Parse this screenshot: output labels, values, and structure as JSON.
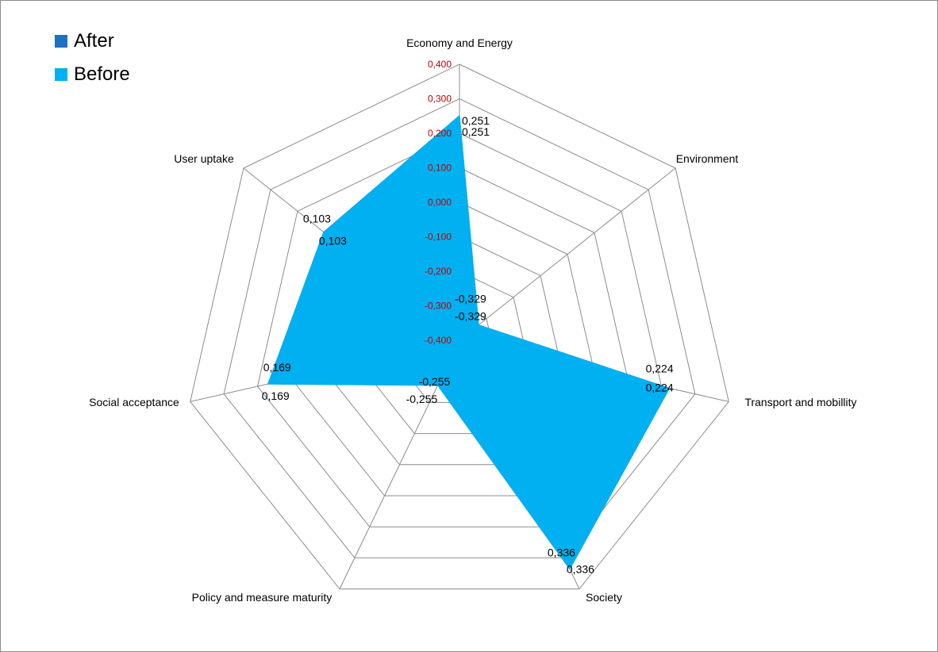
{
  "chart_data": {
    "type": "radar",
    "categories": [
      "Economy and Energy",
      "Environment",
      "Transport and mobillity",
      "Society",
      "Policy and measure maturity",
      "Social acceptance",
      "User uptake"
    ],
    "series": [
      {
        "name": "After",
        "color": "#1F6FC5",
        "values": [
          0.251,
          -0.329,
          0.224,
          0.336,
          -0.255,
          0.169,
          0.103
        ],
        "labels": [
          "0,251",
          "-0,329",
          "0,224",
          "0,336",
          "-0,255",
          "0,169",
          "0,103"
        ]
      },
      {
        "name": "Before",
        "color": "#00B0F0",
        "values": [
          0.251,
          -0.329,
          0.224,
          0.336,
          -0.255,
          0.169,
          0.103
        ],
        "labels": [
          "0,251",
          "-0,329",
          "0,224",
          "0,336",
          "-0,255",
          "0,169",
          "0,103"
        ]
      }
    ],
    "radial_axis": {
      "range": [
        -0.4,
        0.4
      ],
      "ticks": [
        -0.4,
        -0.3,
        -0.2,
        -0.1,
        0.0,
        0.1,
        0.2,
        0.3,
        0.4
      ],
      "tick_labels": [
        "-0,400",
        "-0,300",
        "-0,200",
        "-0,100",
        "0,000",
        "0,100",
        "0,200",
        "0,300",
        "0,400"
      ],
      "tick_label_color": "#C00000"
    },
    "grid": true,
    "legend_position": "top-left"
  }
}
